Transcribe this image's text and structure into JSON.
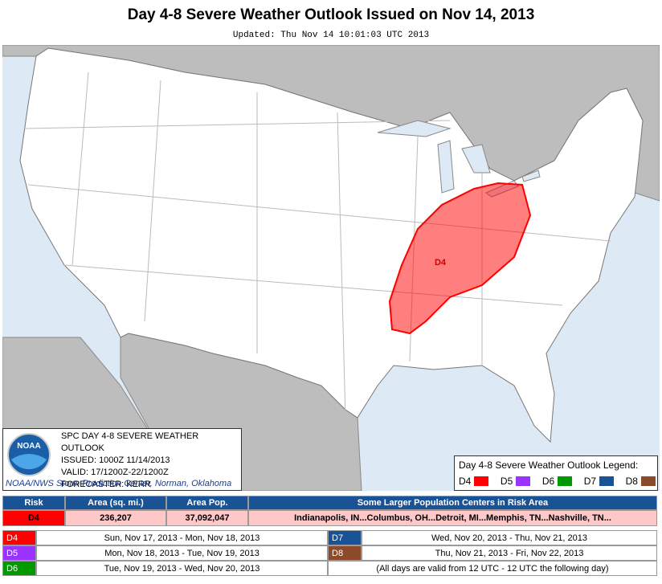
{
  "header": {
    "title": "Day 4-8 Severe Weather Outlook Issued on Nov 14, 2013",
    "updated": "Updated: Thu Nov 14 10:01:03 UTC 2013"
  },
  "map": {
    "risk_label": "D4"
  },
  "info_box": {
    "logo": "NOAA",
    "lines": [
      "SPC DAY 4-8 SEVERE WEATHER OUTLOOK",
      "ISSUED: 1000Z 11/14/2013",
      "VALID: 17/1200Z-22/1200Z",
      "FORECASTER: KERR"
    ],
    "footer": "NOAA/NWS Storm Prediction Center, Norman, Oklahoma"
  },
  "legend": {
    "title": "Day 4-8 Severe Weather Outlook Legend:",
    "items": [
      {
        "label": "D4",
        "color": "#ff0000"
      },
      {
        "label": "D5",
        "color": "#9933ff"
      },
      {
        "label": "D6",
        "color": "#009900"
      },
      {
        "label": "D7",
        "color": "#1a5296"
      },
      {
        "label": "D8",
        "color": "#8b4a2a"
      }
    ]
  },
  "risk_table": {
    "headers": [
      "Risk",
      "Area (sq. mi.)",
      "Area Pop.",
      "Some Larger Population Centers in Risk Area"
    ],
    "rows": [
      [
        "D4",
        "236,207",
        "37,092,047",
        "Indianapolis, IN...Columbus, OH...Detroit, MI...Memphis, TN...Nashville, TN..."
      ]
    ]
  },
  "days_table": {
    "rows": [
      {
        "day": "D4",
        "dates": "Sun, Nov 17, 2013 - Mon, Nov 18, 2013"
      },
      {
        "day": "D5",
        "dates": "Mon, Nov 18, 2013 - Tue, Nov 19, 2013"
      },
      {
        "day": "D6",
        "dates": "Tue, Nov 19, 2013 - Wed, Nov 20, 2013"
      },
      {
        "day": "D7",
        "dates": "Wed, Nov 20, 2013 - Thu, Nov 21, 2013"
      },
      {
        "day": "D8",
        "dates": "Thu, Nov 21, 2013 - Fri, Nov 22, 2013"
      }
    ],
    "note": "(All days are valid from 12 UTC - 12 UTC the following day)"
  }
}
